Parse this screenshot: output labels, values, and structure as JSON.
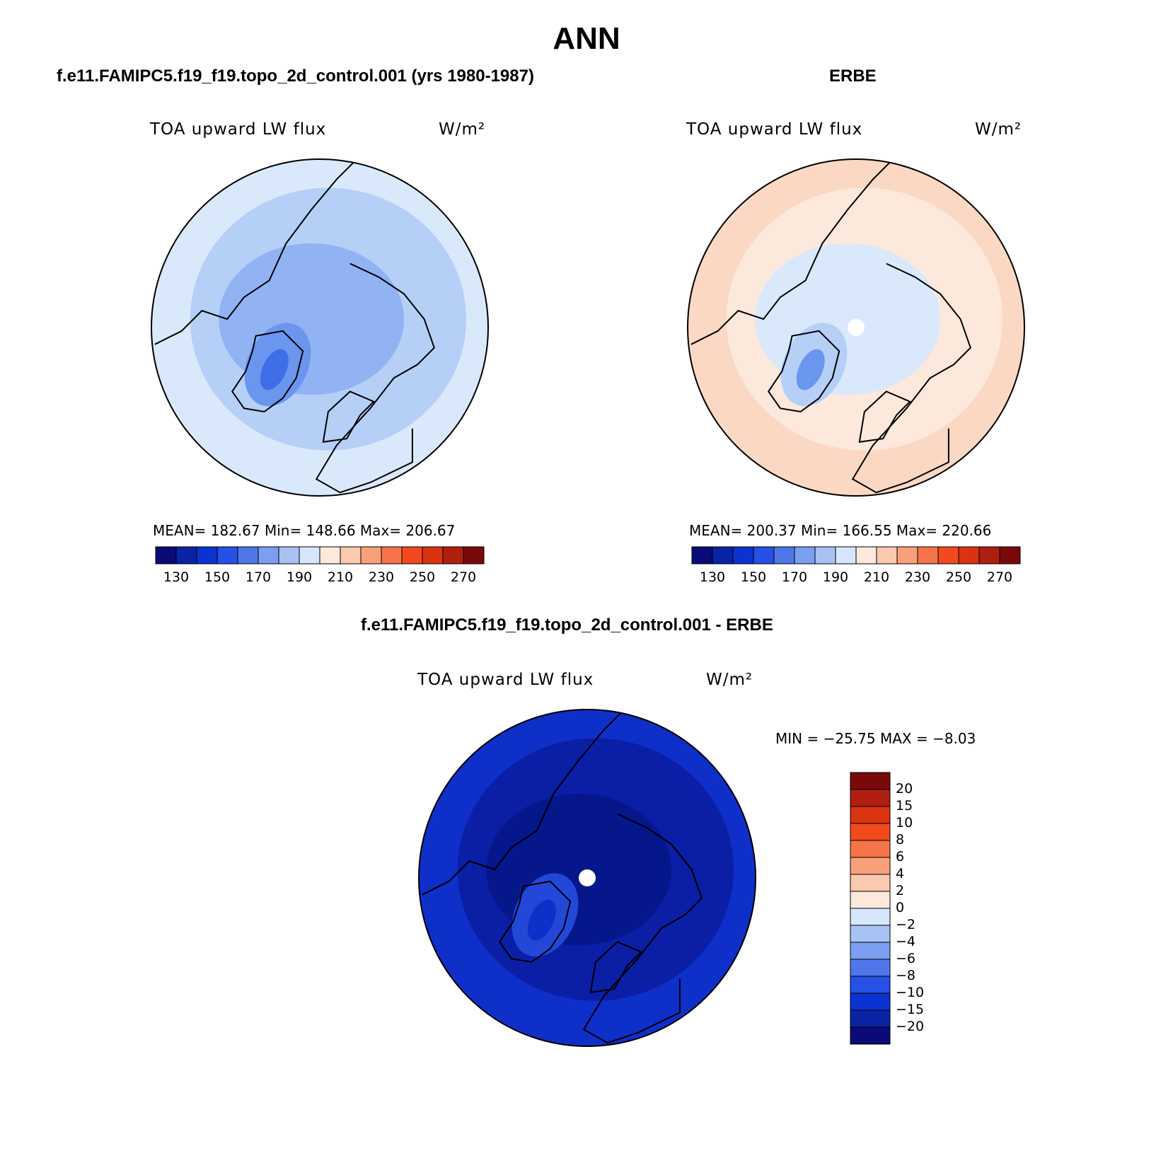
{
  "title": "ANN",
  "panels": [
    {
      "id": "model",
      "title": "f.e11.FAMIPC5.f19_f19.topo_2d_control.001 (yrs 1980-1987)",
      "variable": "TOA upward LW flux",
      "units": "W/m²",
      "stats": {
        "mean": "182.67",
        "min": "148.66",
        "max": "206.67"
      },
      "stats_text": "MEAN= 182.67   Min= 148.66   Max= 206.67",
      "field_levels": [
        "#d9e9fb",
        "#b6cff7",
        "#91b3f3",
        "#6a96ee",
        "#3f6ee8"
      ],
      "pole_hole": false
    },
    {
      "id": "obs",
      "title": "ERBE",
      "variable": "TOA upward LW flux",
      "units": "W/m²",
      "stats": {
        "mean": "200.37",
        "min": "166.55",
        "max": "220.66"
      },
      "stats_text": "MEAN= 200.37   Min= 166.55   Max= 220.66",
      "field_levels": [
        "#fbd8c3",
        "#fde8dc",
        "#d9e9fb",
        "#b6cff7",
        "#6a96ee"
      ],
      "pole_hole": true
    },
    {
      "id": "diff",
      "title": "f.e11.FAMIPC5.f19_f19.topo_2d_control.001 - ERBE",
      "variable": "TOA upward LW flux",
      "units": "W/m²",
      "stats": {
        "min": "−25.75",
        "max": "−8.03"
      },
      "stats_text": "MIN = −25.75 MAX =  −8.03",
      "field_levels": [
        "#0f2fc9",
        "#0a1fa6",
        "#06178c",
        "#2348d8",
        "#0f2fc9"
      ],
      "pole_hole": true
    }
  ],
  "colorbar_abs": {
    "colors": [
      "#0a0a78",
      "#0a22a4",
      "#0b33d1",
      "#2650e6",
      "#4f77ea",
      "#7b9ef0",
      "#a8c2f4",
      "#d7e6fb",
      "#fde8dc",
      "#fbc9ae",
      "#f9a07a",
      "#f6744a",
      "#f24a1c",
      "#d9330f",
      "#b01e10",
      "#7a0a0a"
    ],
    "labels": [
      "130",
      "150",
      "170",
      "190",
      "210",
      "230",
      "250",
      "270"
    ]
  },
  "colorbar_diff": {
    "colors": [
      "#0a0a78",
      "#0a22a4",
      "#0b33d1",
      "#2650e6",
      "#4f77ea",
      "#7b9ef0",
      "#a8c2f4",
      "#d7e6fb",
      "#fde8dc",
      "#fbc9ae",
      "#f9a07a",
      "#f6744a",
      "#f24a1c",
      "#d9330f",
      "#b01e10",
      "#7a0a0a"
    ],
    "labels": [
      "20",
      "15",
      "10",
      "8",
      "6",
      "4",
      "2",
      "0",
      "−2",
      "−4",
      "−6",
      "−8",
      "−10",
      "−15",
      "−20"
    ]
  }
}
